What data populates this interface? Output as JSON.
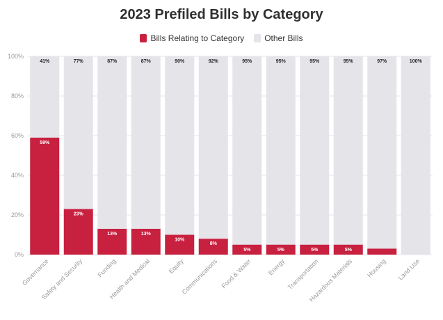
{
  "chart_data": {
    "type": "bar",
    "stacked": true,
    "title": "2023 Prefiled Bills by Category",
    "categories": [
      "Governance",
      "Safety and Security",
      "Funding",
      "Health and Medical",
      "Equity",
      "Communications",
      "Food & Water",
      "Energy",
      "Transportation",
      "Hazardous Materials",
      "Housing",
      "Land Use"
    ],
    "series": [
      {
        "name": "Bills Relating to Category",
        "color": "#c8203f",
        "values": [
          59,
          23,
          13,
          13,
          10,
          8,
          5,
          5,
          5,
          5,
          3,
          0
        ],
        "labels": [
          "59%",
          "23%",
          "13%",
          "13%",
          "10%",
          "8%",
          "5%",
          "5%",
          "5%",
          "5%",
          "",
          ""
        ]
      },
      {
        "name": "Other Bills",
        "color": "#e5e4e9",
        "values": [
          41,
          77,
          87,
          87,
          90,
          92,
          95,
          95,
          95,
          95,
          97,
          100
        ],
        "labels": [
          "41%",
          "77%",
          "87%",
          "87%",
          "90%",
          "92%",
          "95%",
          "95%",
          "95%",
          "95%",
          "97%",
          "100%"
        ]
      }
    ],
    "ylim": [
      0,
      100
    ],
    "yticks": [
      "0%",
      "20%",
      "40%",
      "60%",
      "80%",
      "100%"
    ],
    "grid": true,
    "legend_position": "top-center"
  }
}
